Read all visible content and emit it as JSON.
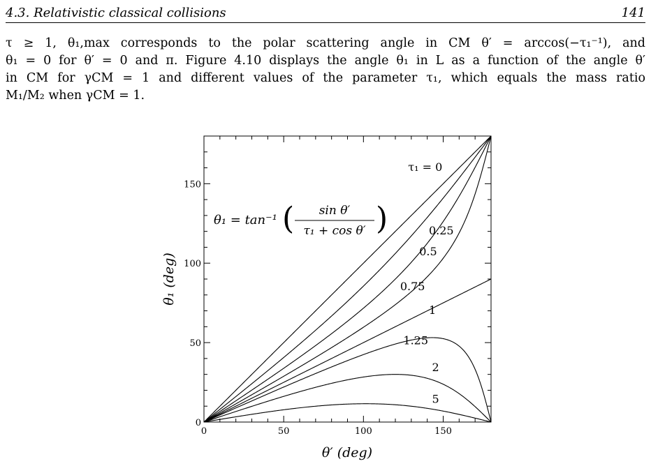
{
  "header": {
    "section": "4.3.  Relativistic classical collisions",
    "page_number": "141"
  },
  "paragraph": {
    "line1": "τ ≥ 1, θ₁,max corresponds to the polar scattering angle in CM θ′ = arccos(−τ₁⁻¹), and",
    "line2": "θ₁ = 0 for θ′ = 0 and π. Figure 4.10 displays the angle θ₁ in L as a function of the angle θ′",
    "line3": "in CM for γCM = 1 and different values of the parameter τ₁, which equals the mass ratio",
    "line4": "M₁/M₂ when γCM = 1."
  },
  "figure": {
    "formula": {
      "lhs": "θ₁ = tan⁻¹",
      "numerator": "sin θ′",
      "denominator": "τ₁ + cos θ′"
    }
  },
  "chart_data": {
    "type": "line",
    "title": "",
    "xlabel": "θ′  (deg)",
    "ylabel": "θ₁  (deg)",
    "xlim": [
      0,
      180
    ],
    "ylim": [
      0,
      180
    ],
    "xticks": [
      0,
      50,
      100,
      150
    ],
    "yticks": [
      0,
      50,
      100,
      150
    ],
    "grid": false,
    "function": "theta1 = atan2(sin(theta'), tau1 + cos(theta'))",
    "series": [
      {
        "name": "τ₁ = 0",
        "tau": 0,
        "label": "τ₁ = 0",
        "label_at": [
          128,
          158
        ]
      },
      {
        "name": "0.25",
        "tau": 0.25,
        "label": "0.25",
        "label_at": [
          141,
          118
        ]
      },
      {
        "name": "0.5",
        "tau": 0.5,
        "label": "0.5",
        "label_at": [
          135,
          105
        ]
      },
      {
        "name": "0.75",
        "tau": 0.75,
        "label": "0.75",
        "label_at": [
          123,
          83
        ]
      },
      {
        "name": "1",
        "tau": 1,
        "label": "1",
        "label_at": [
          141,
          68
        ]
      },
      {
        "name": "1.25",
        "tau": 1.25,
        "label": "1.25",
        "label_at": [
          125,
          49
        ]
      },
      {
        "name": "2",
        "tau": 2,
        "label": "2",
        "label_at": [
          143,
          32
        ]
      },
      {
        "name": "5",
        "tau": 5,
        "label": "5",
        "label_at": [
          143,
          12
        ]
      }
    ]
  }
}
